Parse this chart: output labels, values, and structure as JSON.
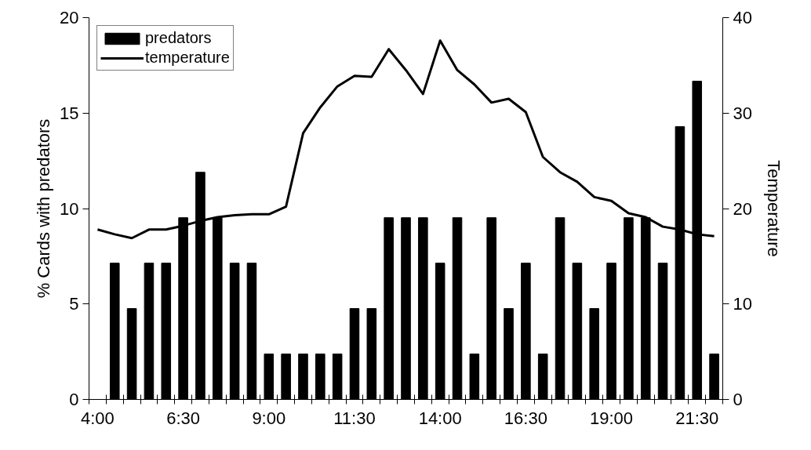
{
  "chart_data": {
    "type": "bar",
    "ylabel": "% Cards with predators",
    "y2label": "Temperature",
    "categories": [
      "4:00",
      null,
      null,
      null,
      null,
      "6:30",
      null,
      null,
      null,
      null,
      "9:00",
      null,
      null,
      null,
      null,
      "11:30",
      null,
      null,
      null,
      null,
      "14:00",
      null,
      null,
      null,
      null,
      "16:30",
      null,
      null,
      null,
      null,
      "19:00",
      null,
      null,
      null,
      null,
      "21:30",
      null
    ],
    "series": [
      {
        "name": "predators",
        "color": "#000000",
        "values": [
          null,
          7.14,
          4.76,
          7.14,
          7.14,
          9.52,
          11.9,
          9.52,
          7.14,
          7.14,
          2.38,
          2.38,
          2.38,
          2.38,
          2.38,
          4.76,
          4.76,
          9.52,
          9.52,
          9.52,
          7.14,
          9.52,
          2.38,
          9.52,
          4.76,
          7.14,
          2.38,
          9.52,
          7.14,
          4.76,
          7.14,
          9.52,
          9.52,
          7.14,
          14.29,
          16.67,
          2.38
        ]
      },
      {
        "name": "temperature",
        "type": "line",
        "axis": "y2",
        "color": "#000000",
        "values": [
          17.8,
          17.3,
          16.9,
          17.8,
          17.8,
          18.2,
          18.7,
          19.1,
          19.3,
          19.4,
          19.4,
          20.2,
          27.9,
          30.6,
          32.8,
          33.9,
          33.8,
          36.7,
          34.5,
          32.0,
          37.6,
          34.5,
          33.0,
          31.1,
          31.5,
          30.1,
          25.4,
          23.8,
          22.8,
          21.2,
          20.8,
          19.5,
          19.1,
          18.1,
          17.8,
          17.3,
          17.1
        ]
      }
    ],
    "ylim": [
      0,
      20
    ],
    "yticks": [
      0,
      5,
      10,
      15,
      20
    ],
    "y2lim": [
      0,
      40
    ],
    "y2ticks": [
      0,
      10,
      20,
      30,
      40
    ],
    "grid": false,
    "legend": "top left",
    "marker": "none",
    "line_style": "solid"
  }
}
